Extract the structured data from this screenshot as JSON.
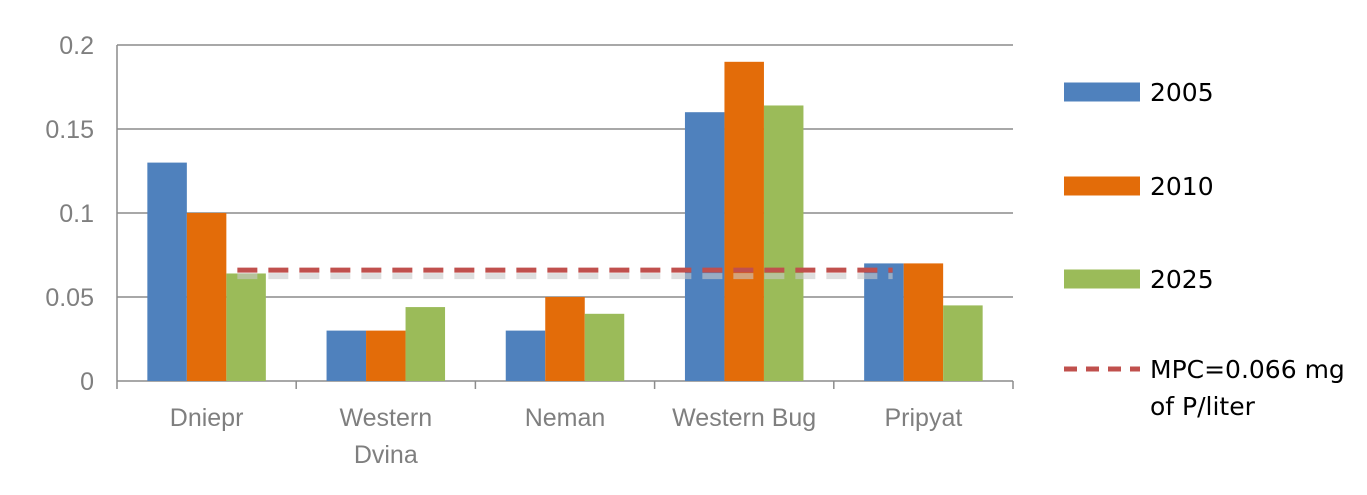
{
  "chart_data": {
    "type": "bar",
    "categories": [
      [
        "Dniepr"
      ],
      [
        "Western",
        "Dvina"
      ],
      [
        "Neman"
      ],
      [
        "Western Bug"
      ],
      [
        "Pripyat"
      ]
    ],
    "series": [
      {
        "name": "2005",
        "color": "#4f81bd",
        "values": [
          0.13,
          0.03,
          0.03,
          0.16,
          0.07
        ]
      },
      {
        "name": "2010",
        "color": "#e36c09",
        "values": [
          0.1,
          0.03,
          0.05,
          0.19,
          0.07
        ]
      },
      {
        "name": "2025",
        "color": "#9bbb59",
        "values": [
          0.064,
          0.044,
          0.04,
          0.164,
          0.045
        ]
      }
    ],
    "reference_line": {
      "label": [
        "MPC=0.066 mg",
        "of P/liter"
      ],
      "value": 0.066,
      "color": "#c0504d",
      "style": "dashed"
    },
    "ylim": [
      0,
      0.2
    ],
    "yticks": [
      "0",
      "0.05",
      "0.1",
      "0.15",
      "0.2"
    ],
    "grid": true,
    "legend_position": "right",
    "title": "",
    "xlabel": "",
    "ylabel": ""
  }
}
